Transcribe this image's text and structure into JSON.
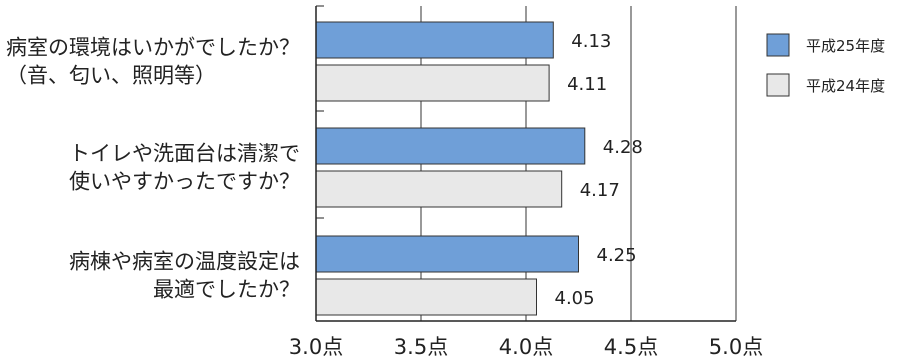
{
  "chart_data": {
    "type": "bar",
    "orientation": "horizontal",
    "categories": [
      [
        "病室の環境はいかがでしたか？",
        "（音、匂い、照明等）"
      ],
      [
        "トイレや洗面台は清潔で",
        "使いやすかったですか？"
      ],
      [
        "病棟や病室の温度設定は",
        "最適でしたか？"
      ]
    ],
    "series": [
      {
        "name": "平成25年度",
        "values": [
          4.13,
          4.28,
          4.25
        ],
        "labels": [
          "4.13",
          "4.28",
          "4.25"
        ],
        "color": "#6f9fd8"
      },
      {
        "name": "平成24年度",
        "values": [
          4.11,
          4.17,
          4.05
        ],
        "labels": [
          "4.11",
          "4.17",
          "4.05"
        ],
        "color": "#e8e8e8"
      }
    ],
    "xlim": [
      3.0,
      5.0
    ],
    "xticks": [
      3.0,
      3.5,
      4.0,
      4.5,
      5.0
    ],
    "xtick_labels": [
      "3.0点",
      "3.5点",
      "4.0点",
      "4.5点",
      "5.0点"
    ],
    "grid": "vertical",
    "legend": "right",
    "title": "",
    "xlabel": "",
    "ylabel": ""
  }
}
